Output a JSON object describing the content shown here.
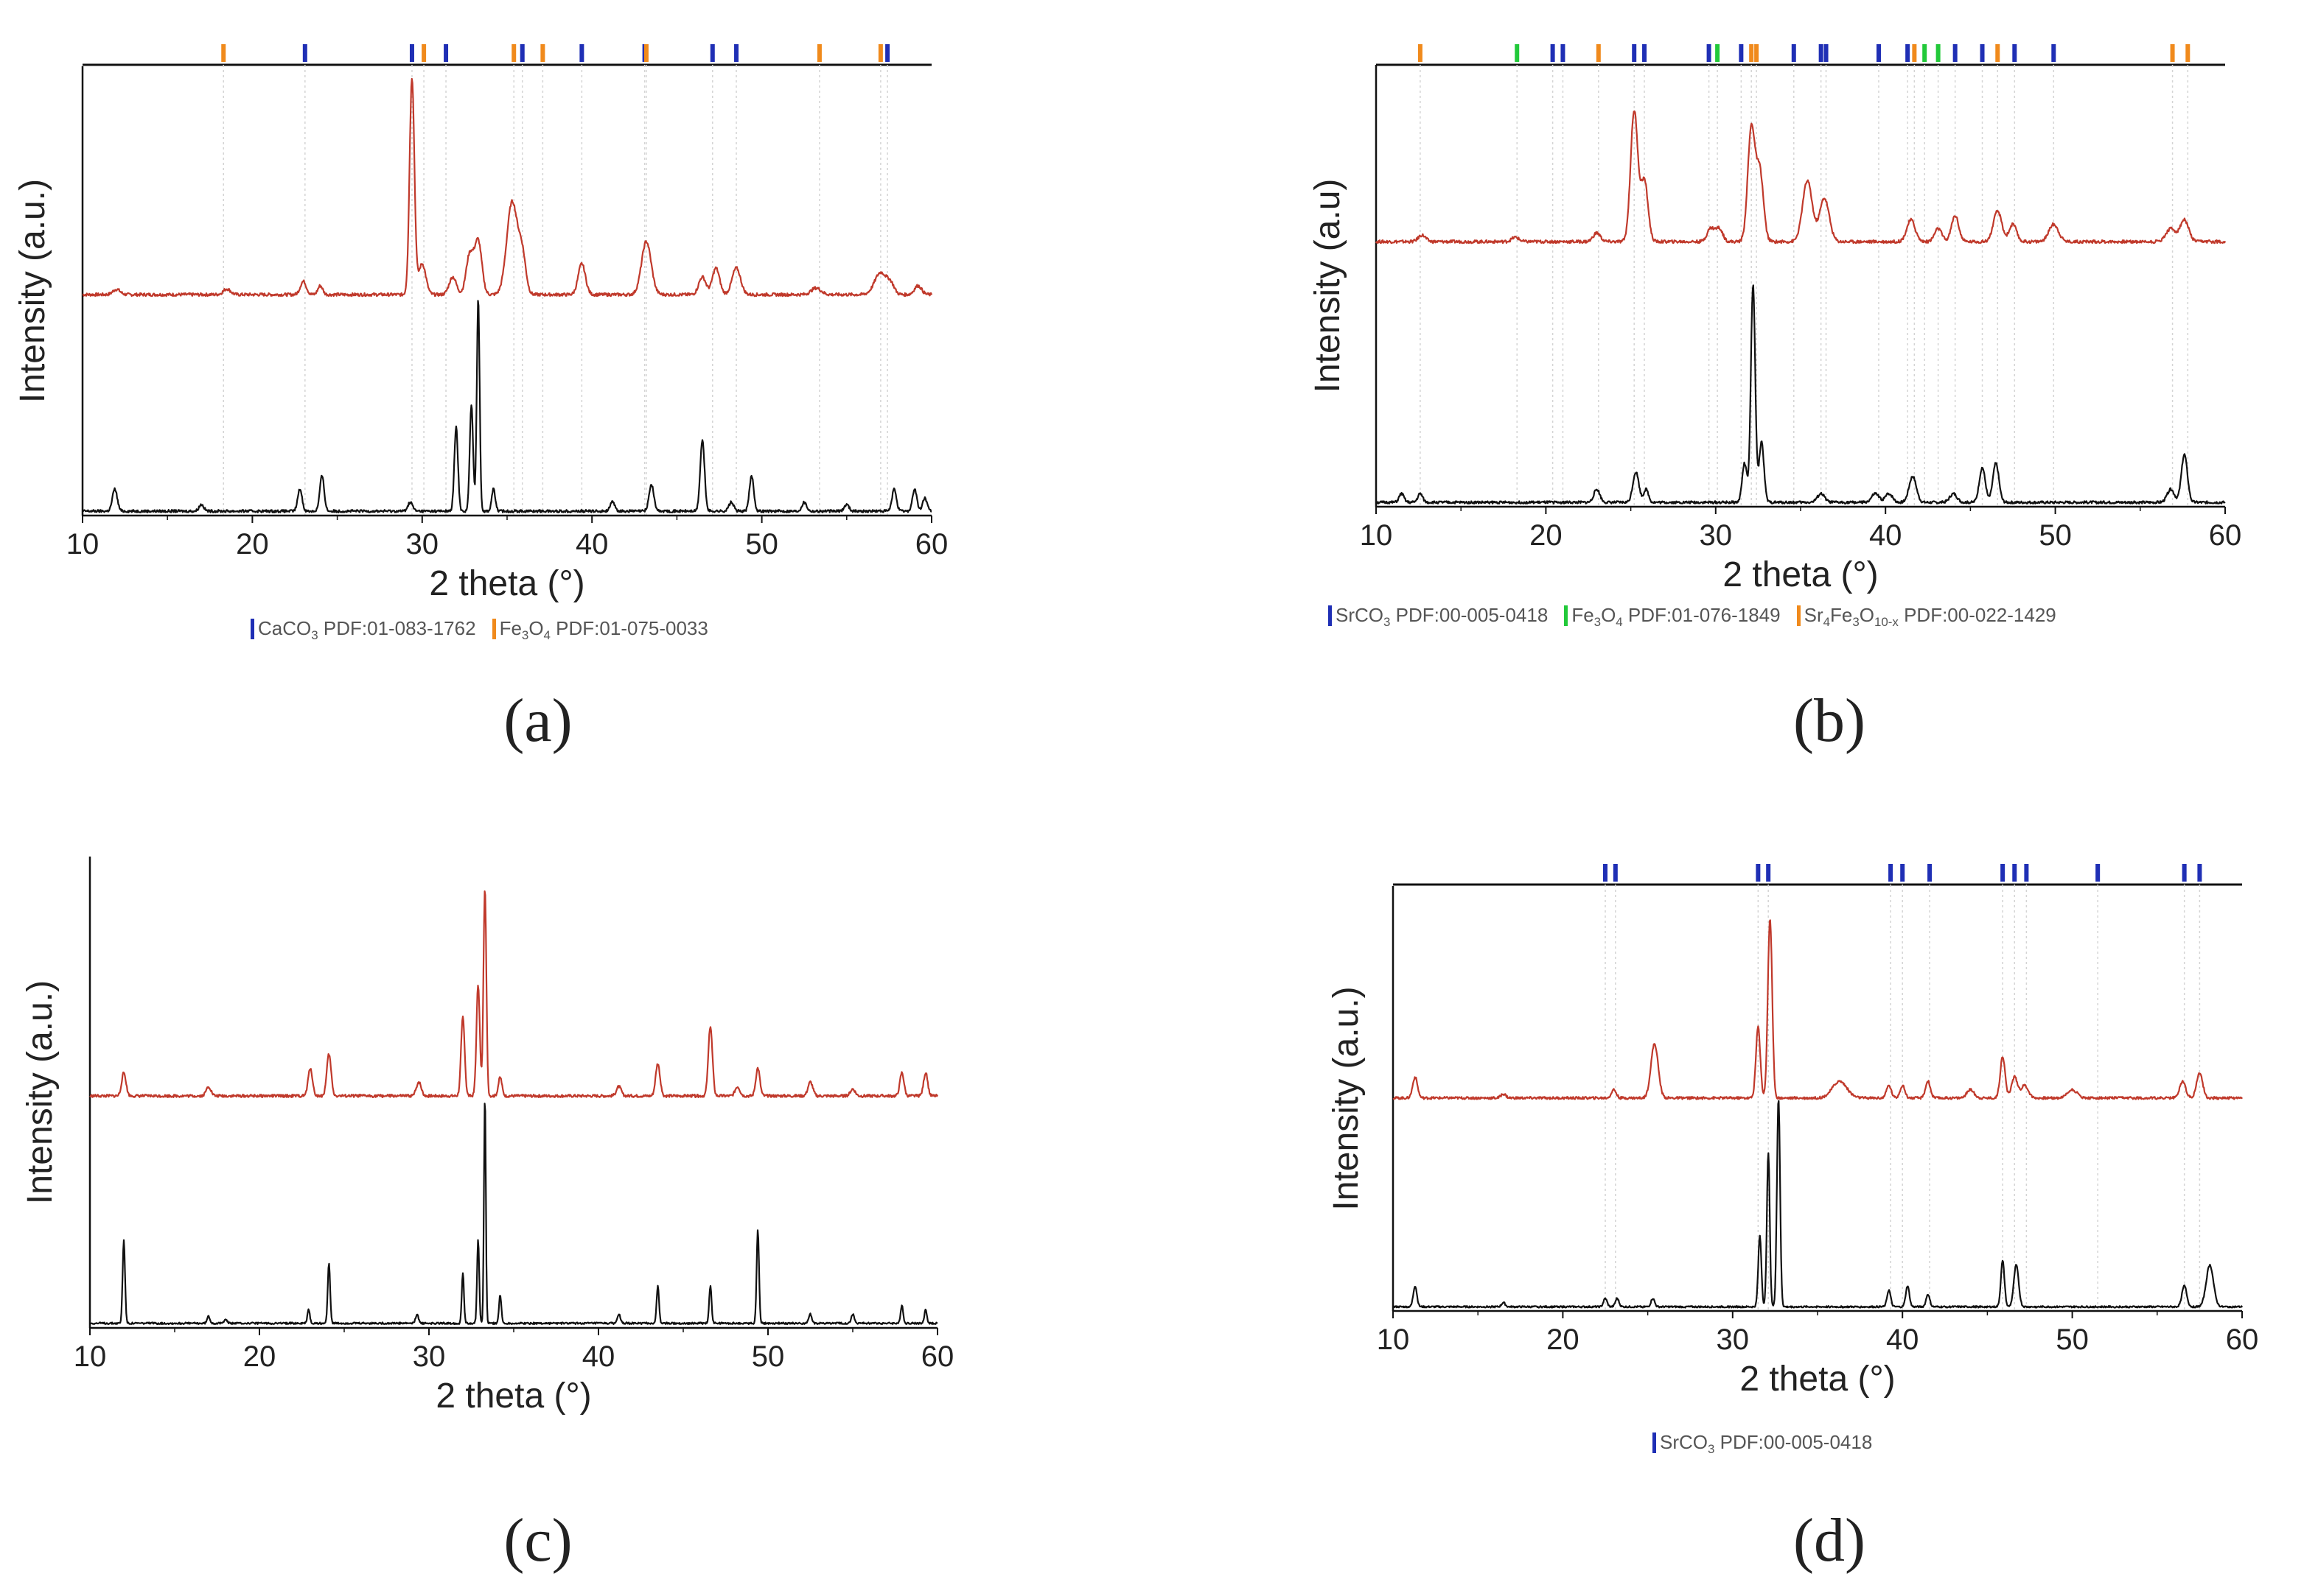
{
  "colors": {
    "sample_red": "#c0392b",
    "reference_black": "#111111",
    "ref_blue": "#1f2fb5",
    "ref_orange": "#f08a1c",
    "ref_green": "#22c93a",
    "guide": "#d4d4d4"
  },
  "chart_data": [
    {
      "panel": "a",
      "type": "line",
      "caption": "(a)",
      "xlabel": "2 theta (°)",
      "ylabel": "Intensity (a.u.)",
      "xlim": [
        10,
        60
      ],
      "ylim": [
        0,
        100
      ],
      "xticks": [
        "10",
        "20",
        "30",
        "40",
        "50",
        "60"
      ],
      "grid": false,
      "series": [
        {
          "name": "sample",
          "color": "#c0392b",
          "baseline": 50,
          "noise": 0.35,
          "peaks": [
            [
              12,
              1.2,
              0.3
            ],
            [
              18.5,
              1.3,
              0.3
            ],
            [
              23,
              3,
              0.25
            ],
            [
              24,
              2,
              0.2
            ],
            [
              29.4,
              49,
              0.2
            ],
            [
              30,
              7,
              0.3
            ],
            [
              31.8,
              4,
              0.3
            ],
            [
              32.8,
              9,
              0.3
            ],
            [
              33.3,
              12,
              0.3
            ],
            [
              35.3,
              21,
              0.45
            ],
            [
              35.9,
              8,
              0.3
            ],
            [
              39.4,
              7,
              0.3
            ],
            [
              43.2,
              12,
              0.4
            ],
            [
              46.5,
              4,
              0.3
            ],
            [
              47.3,
              6,
              0.3
            ],
            [
              48.5,
              6,
              0.35
            ],
            [
              53.2,
              1.5,
              0.4
            ],
            [
              57,
              5,
              0.5
            ],
            [
              57.6,
              2,
              0.3
            ],
            [
              59.2,
              2,
              0.3
            ]
          ]
        },
        {
          "name": "reference",
          "color": "#111111",
          "baseline": 1,
          "noise": 0.3,
          "peaks": [
            [
              11.9,
              5,
              0.2
            ],
            [
              17,
              1.5,
              0.2
            ],
            [
              22.8,
              5,
              0.18
            ],
            [
              24.1,
              8,
              0.18
            ],
            [
              29.3,
              2,
              0.2
            ],
            [
              32,
              19,
              0.15
            ],
            [
              32.9,
              24,
              0.14
            ],
            [
              33.3,
              48,
              0.12
            ],
            [
              34.2,
              5,
              0.15
            ],
            [
              41.2,
              2,
              0.2
            ],
            [
              43.5,
              6,
              0.2
            ],
            [
              46.5,
              16,
              0.18
            ],
            [
              48.2,
              2,
              0.2
            ],
            [
              49.4,
              8,
              0.18
            ],
            [
              52.5,
              2,
              0.2
            ],
            [
              55,
              1.5,
              0.2
            ],
            [
              57.8,
              5,
              0.18
            ],
            [
              59,
              5,
              0.18
            ],
            [
              59.6,
              3,
              0.18
            ]
          ]
        }
      ],
      "reference_ticks": [
        {
          "phase": "CaCO3",
          "color": "#1f2fb5",
          "positions": [
            23.1,
            29.4,
            31.4,
            35.9,
            39.4,
            43.1,
            47.1,
            48.5,
            57.4
          ]
        },
        {
          "phase": "Fe3O4",
          "color": "#f08a1c",
          "positions": [
            18.3,
            30.1,
            35.4,
            37.1,
            43.2,
            53.4,
            57.0
          ]
        }
      ],
      "legend": [
        {
          "name": "CaCO",
          "sub": "3",
          "suffix": " PDF:01-083-1762",
          "color": "#1f2fb5"
        },
        {
          "name": "Fe",
          "sub": "3",
          "mid": "O",
          "sub2": "4",
          "suffix": " PDF:01-075-0033",
          "color": "#f08a1c"
        }
      ]
    },
    {
      "panel": "b",
      "type": "line",
      "caption": "(b)",
      "xlabel": "2 theta (°)",
      "ylabel": "Intensity (a.u)",
      "xlim": [
        10,
        60
      ],
      "ylim": [
        0,
        100
      ],
      "xticks": [
        "10",
        "20",
        "30",
        "40",
        "50",
        "60"
      ],
      "grid": false,
      "series": [
        {
          "name": "sample",
          "color": "#c0392b",
          "baseline": 61,
          "noise": 0.35,
          "peaks": [
            [
              12.7,
              1.5,
              0.3
            ],
            [
              18.2,
              1,
              0.3
            ],
            [
              23,
              2,
              0.3
            ],
            [
              25.2,
              30,
              0.3
            ],
            [
              25.8,
              14,
              0.3
            ],
            [
              29.7,
              3,
              0.3
            ],
            [
              30.2,
              3,
              0.3
            ],
            [
              32.1,
              26,
              0.3
            ],
            [
              32.6,
              16,
              0.3
            ],
            [
              35.4,
              14,
              0.4
            ],
            [
              36.4,
              10,
              0.4
            ],
            [
              41.5,
              5,
              0.35
            ],
            [
              43.1,
              3,
              0.3
            ],
            [
              44.1,
              6,
              0.3
            ],
            [
              46.6,
              7,
              0.35
            ],
            [
              47.5,
              4,
              0.3
            ],
            [
              49.9,
              4,
              0.4
            ],
            [
              56.8,
              3,
              0.4
            ],
            [
              57.6,
              5,
              0.35
            ]
          ]
        },
        {
          "name": "reference",
          "color": "#111111",
          "baseline": 1,
          "noise": 0.3,
          "peaks": [
            [
              11.5,
              2,
              0.2
            ],
            [
              12.6,
              2,
              0.2
            ],
            [
              23,
              3,
              0.25
            ],
            [
              25.3,
              7,
              0.25
            ],
            [
              25.9,
              3,
              0.2
            ],
            [
              31.7,
              9,
              0.2
            ],
            [
              32.2,
              50,
              0.18
            ],
            [
              32.7,
              14,
              0.2
            ],
            [
              36.2,
              2,
              0.3
            ],
            [
              39.4,
              2,
              0.3
            ],
            [
              40.2,
              2,
              0.3
            ],
            [
              41.6,
              6,
              0.3
            ],
            [
              44,
              2,
              0.3
            ],
            [
              45.7,
              8,
              0.25
            ],
            [
              46.5,
              9,
              0.25
            ],
            [
              56.8,
              3,
              0.3
            ],
            [
              57.6,
              11,
              0.25
            ]
          ]
        }
      ],
      "reference_ticks": [
        {
          "phase": "SrCO3",
          "color": "#1f2fb5",
          "positions": [
            20.4,
            21,
            25.2,
            25.8,
            29.6,
            31.5,
            34.6,
            36.2,
            36.5,
            39.6,
            41.3,
            44.1,
            45.7,
            47.6,
            49.9
          ]
        },
        {
          "phase": "Fe3O4",
          "color": "#22c93a",
          "positions": [
            18.3,
            30.1,
            42.3,
            43.1
          ]
        },
        {
          "phase": "Sr4Fe3O10-x",
          "color": "#f08a1c",
          "positions": [
            12.6,
            23.1,
            32.1,
            32.4,
            41.7,
            46.6,
            56.9,
            57.8
          ]
        }
      ],
      "legend": [
        {
          "name": "SrCO",
          "sub": "3",
          "suffix": " PDF:00-005-0418",
          "color": "#1f2fb5"
        },
        {
          "name": "Fe",
          "sub": "3",
          "mid": "O",
          "sub2": "4",
          "suffix": " PDF:01-076-1849",
          "color": "#22c93a"
        },
        {
          "name": "Sr",
          "sub": "4",
          "mid": "Fe",
          "sub2": "3",
          "mid2": "O",
          "sub3": "10-x",
          "suffix": " PDF:00-022-1429",
          "color": "#f08a1c"
        }
      ]
    },
    {
      "panel": "c",
      "type": "line",
      "caption": "(c)",
      "xlabel": "2 theta (°)",
      "ylabel": "Intensity (a.u.)",
      "xlim": [
        10,
        60
      ],
      "ylim": [
        0,
        100
      ],
      "xticks": [
        "10",
        "20",
        "30",
        "40",
        "50",
        "60"
      ],
      "grid": false,
      "series": [
        {
          "name": "sample",
          "color": "#c0392b",
          "baseline": 50,
          "noise": 0.3,
          "peaks": [
            [
              12,
              5,
              0.18
            ],
            [
              17,
              2,
              0.2
            ],
            [
              23,
              6,
              0.18
            ],
            [
              24.1,
              9,
              0.18
            ],
            [
              29.4,
              3,
              0.2
            ],
            [
              32,
              17,
              0.15
            ],
            [
              32.9,
              24,
              0.14
            ],
            [
              33.3,
              45,
              0.12
            ],
            [
              34.2,
              4,
              0.15
            ],
            [
              41.2,
              2,
              0.2
            ],
            [
              43.5,
              7,
              0.18
            ],
            [
              46.6,
              15,
              0.17
            ],
            [
              48.2,
              2,
              0.2
            ],
            [
              49.4,
              6,
              0.17
            ],
            [
              52.5,
              3,
              0.2
            ],
            [
              55,
              1.5,
              0.2
            ],
            [
              57.9,
              5,
              0.17
            ],
            [
              59.3,
              5,
              0.17
            ]
          ]
        },
        {
          "name": "reference",
          "color": "#111111",
          "baseline": 1,
          "noise": 0.2,
          "peaks": [
            [
              12,
              18,
              0.1
            ],
            [
              17,
              1.5,
              0.12
            ],
            [
              18,
              1,
              0.12
            ],
            [
              22.9,
              3,
              0.1
            ],
            [
              24.1,
              13,
              0.1
            ],
            [
              29.3,
              2,
              0.12
            ],
            [
              32,
              11,
              0.09
            ],
            [
              32.9,
              18,
              0.09
            ],
            [
              33.3,
              49,
              0.08
            ],
            [
              34.2,
              6,
              0.1
            ],
            [
              41.2,
              2,
              0.12
            ],
            [
              43.5,
              8,
              0.1
            ],
            [
              46.6,
              8,
              0.1
            ],
            [
              49.4,
              20,
              0.1
            ],
            [
              52.5,
              2,
              0.12
            ],
            [
              55,
              2,
              0.12
            ],
            [
              57.9,
              4,
              0.1
            ],
            [
              59.3,
              3,
              0.1
            ]
          ]
        }
      ],
      "reference_ticks": [],
      "legend": []
    },
    {
      "panel": "d",
      "type": "line",
      "caption": "(d)",
      "xlabel": "2 theta (°)",
      "ylabel": "Intensity (a.u.)",
      "xlim": [
        10,
        60
      ],
      "ylim": [
        0,
        100
      ],
      "xticks": [
        "10",
        "20",
        "30",
        "40",
        "50",
        "60"
      ],
      "grid": false,
      "series": [
        {
          "name": "sample",
          "color": "#c0392b",
          "baseline": 51,
          "noise": 0.3,
          "peaks": [
            [
              11.3,
              5,
              0.2
            ],
            [
              16.5,
              1,
              0.2
            ],
            [
              23,
              2,
              0.2
            ],
            [
              25.4,
              13,
              0.3
            ],
            [
              31.5,
              17,
              0.18
            ],
            [
              32.2,
              43,
              0.18
            ],
            [
              36.3,
              4,
              0.6
            ],
            [
              39.2,
              3,
              0.2
            ],
            [
              40,
              3,
              0.2
            ],
            [
              41.5,
              4,
              0.2
            ],
            [
              44,
              2,
              0.3
            ],
            [
              45.9,
              10,
              0.2
            ],
            [
              46.6,
              5,
              0.25
            ],
            [
              47.2,
              3,
              0.3
            ],
            [
              50,
              2,
              0.4
            ],
            [
              56.5,
              4,
              0.25
            ],
            [
              57.5,
              6,
              0.25
            ]
          ]
        },
        {
          "name": "reference",
          "color": "#111111",
          "baseline": 1,
          "noise": 0.2,
          "peaks": [
            [
              11.3,
              5,
              0.15
            ],
            [
              16.5,
              1,
              0.15
            ],
            [
              22.5,
              2,
              0.15
            ],
            [
              23.2,
              2,
              0.15
            ],
            [
              25.3,
              2,
              0.15
            ],
            [
              31.6,
              17,
              0.13
            ],
            [
              32.1,
              37,
              0.12
            ],
            [
              32.7,
              50,
              0.13
            ],
            [
              39.2,
              4,
              0.15
            ],
            [
              40.3,
              5,
              0.15
            ],
            [
              41.5,
              3,
              0.15
            ],
            [
              45.9,
              11,
              0.15
            ],
            [
              46.7,
              10,
              0.2
            ],
            [
              56.6,
              5,
              0.2
            ],
            [
              58.1,
              10,
              0.3
            ]
          ]
        }
      ],
      "reference_ticks": [
        {
          "phase": "SrCO3",
          "color": "#1f2fb5",
          "positions": [
            22.5,
            23.1,
            31.5,
            32.1,
            39.3,
            40,
            41.6,
            45.9,
            46.6,
            47.3,
            51.5,
            56.6,
            57.5
          ]
        }
      ],
      "legend": [
        {
          "name": "SrCO",
          "sub": "3",
          "suffix": " PDF:00-005-0418",
          "color": "#1f2fb5"
        }
      ]
    }
  ]
}
